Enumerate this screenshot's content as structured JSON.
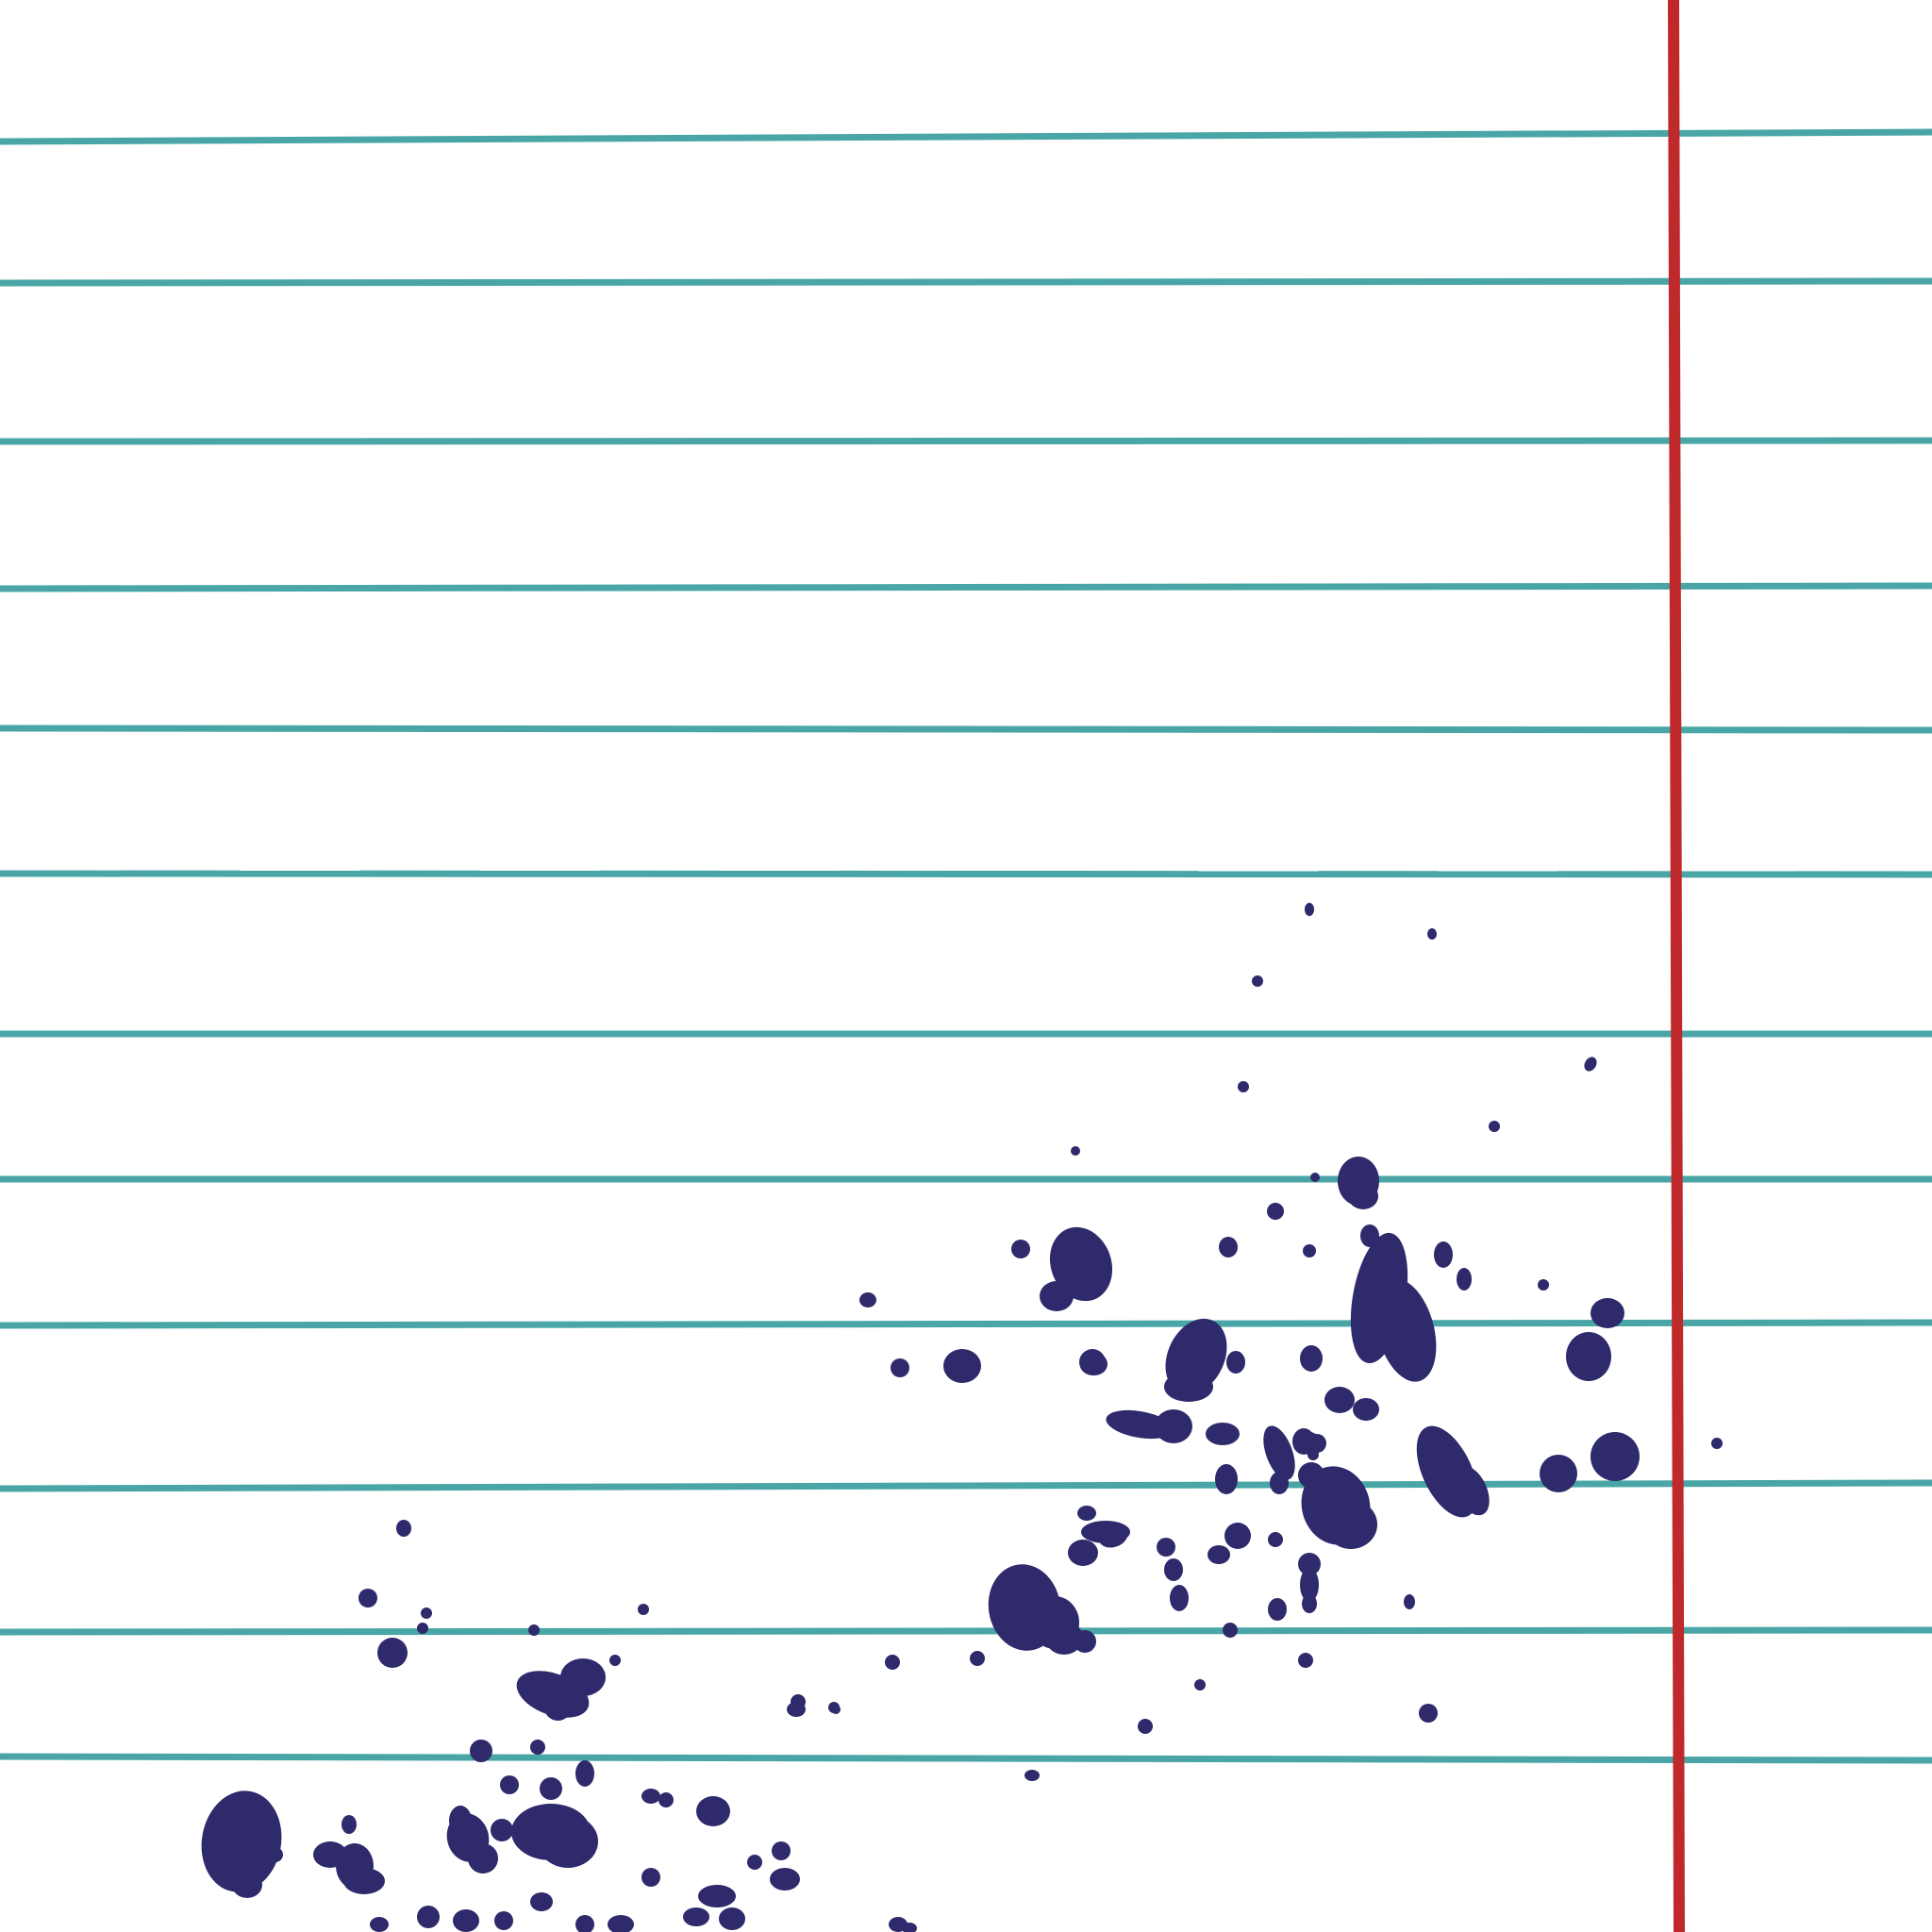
{
  "paper": {
    "background_color": "#ffffff",
    "rule_color": "#4aa6a6",
    "margin_line_color": "#c0292b",
    "ink_color": "#2e2a6b",
    "rule_count": 12,
    "margin_line_count": 1
  }
}
